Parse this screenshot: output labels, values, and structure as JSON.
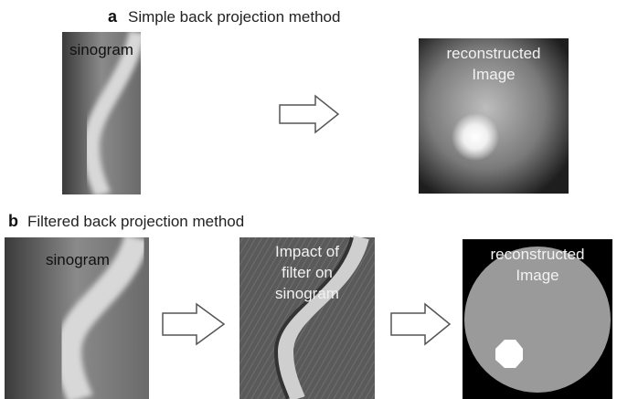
{
  "panel_a": {
    "label": "a",
    "title": "Simple back projection method",
    "sinogram_label": "sinogram",
    "result_label_lines": [
      "reconstructed",
      "Image"
    ]
  },
  "panel_b": {
    "label": "b",
    "title": "Filtered back projection method",
    "sinogram_label": "sinogram",
    "filtered_label_lines": [
      "Impact of",
      "filter on",
      "sinogram"
    ],
    "result_label_lines": [
      "reconstructed",
      "Image"
    ]
  }
}
